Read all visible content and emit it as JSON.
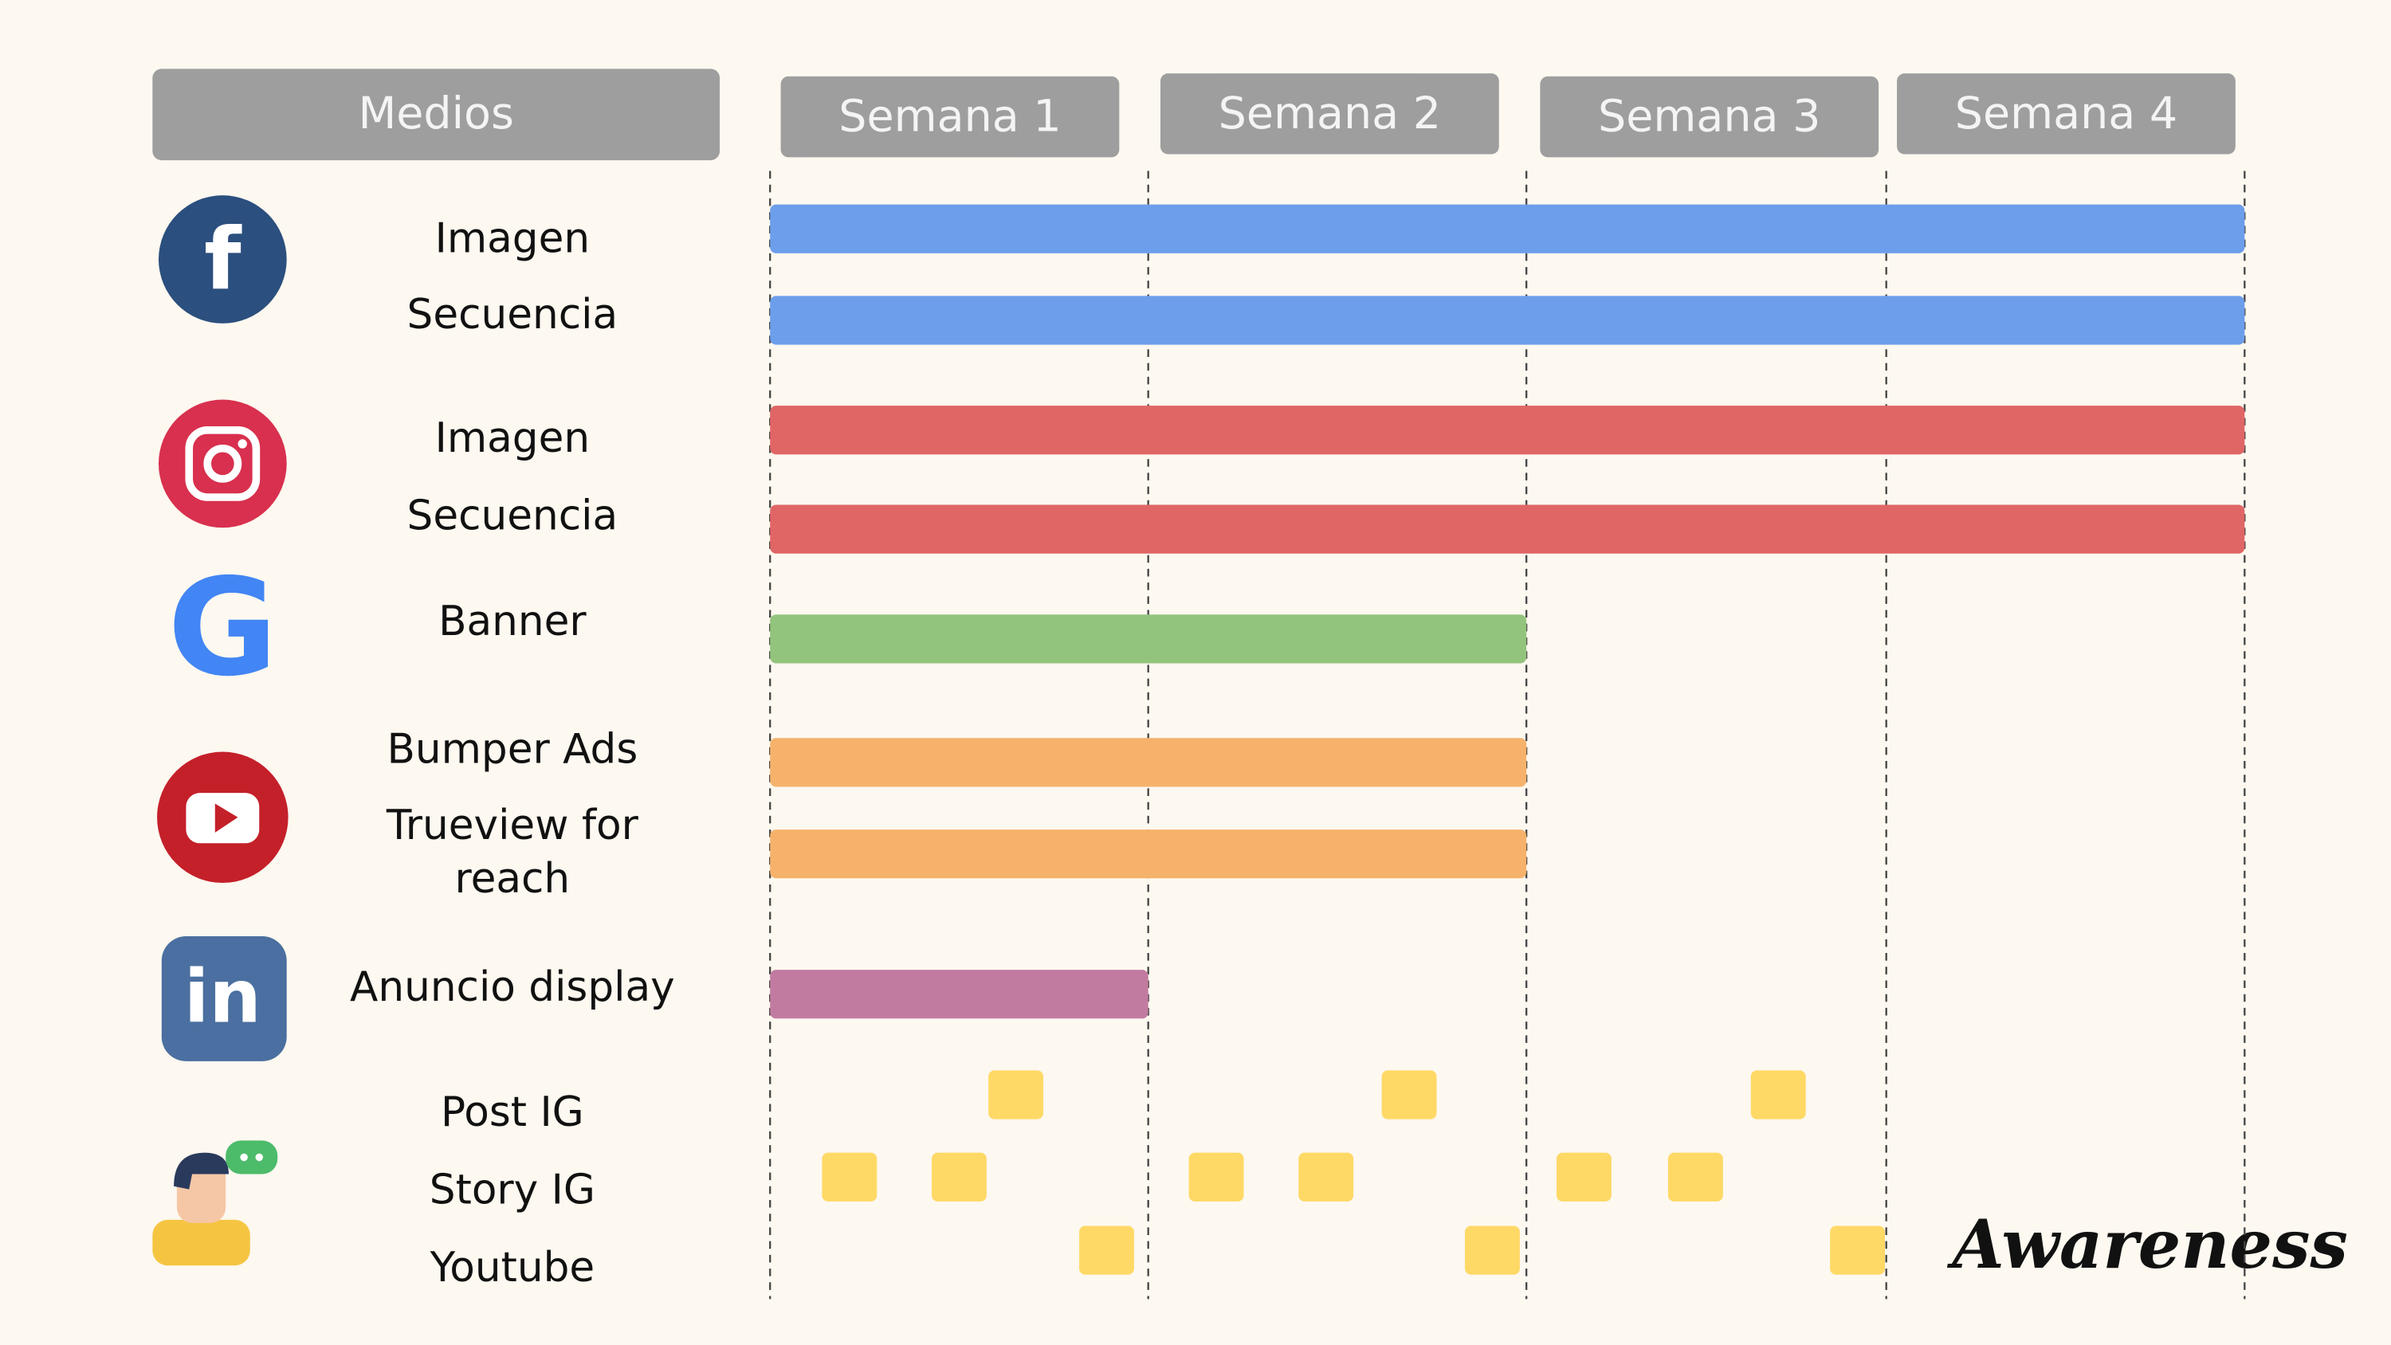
{
  "header": {
    "medios": "Medios",
    "weeks": [
      "Semana 1",
      "Semana 2",
      "Semana 3",
      "Semana 4"
    ]
  },
  "rows": [
    {
      "label": [
        "Imagen"
      ],
      "start": 0,
      "end": 4,
      "color": "#6d9eeb"
    },
    {
      "label": [
        "Secuencia"
      ],
      "start": 0,
      "end": 4,
      "color": "#6d9eeb"
    },
    {
      "label": [
        "Imagen"
      ],
      "start": 0,
      "end": 4,
      "color": "#e06666"
    },
    {
      "label": [
        "Secuencia"
      ],
      "start": 0,
      "end": 4,
      "color": "#e06666"
    },
    {
      "label": [
        "Banner"
      ],
      "start": 0,
      "end": 2,
      "color": "#93c47d"
    },
    {
      "label": [
        "Bumper Ads"
      ],
      "start": 0,
      "end": 2,
      "color": "#f6b26b"
    },
    {
      "label": [
        "Trueview for",
        "reach"
      ],
      "start": 0,
      "end": 2,
      "color": "#f6b26b"
    },
    {
      "label": [
        "Anuncio display"
      ],
      "start": 0,
      "end": 1,
      "color": "#c27ba0"
    }
  ],
  "posts": [
    {
      "label": "Post IG",
      "weeks": [
        0.65,
        1.69,
        2.7
      ],
      "color": "#ffd966"
    },
    {
      "label": "Story IG",
      "weeks": [
        0.21,
        0.5,
        1.18,
        1.47,
        2.16,
        2.47
      ],
      "color": "#ffd966"
    },
    {
      "label": "Youtube",
      "weeks": [
        0.89,
        1.91,
        2.92
      ],
      "color": "#ffd966"
    }
  ],
  "brand": "Awareness"
}
